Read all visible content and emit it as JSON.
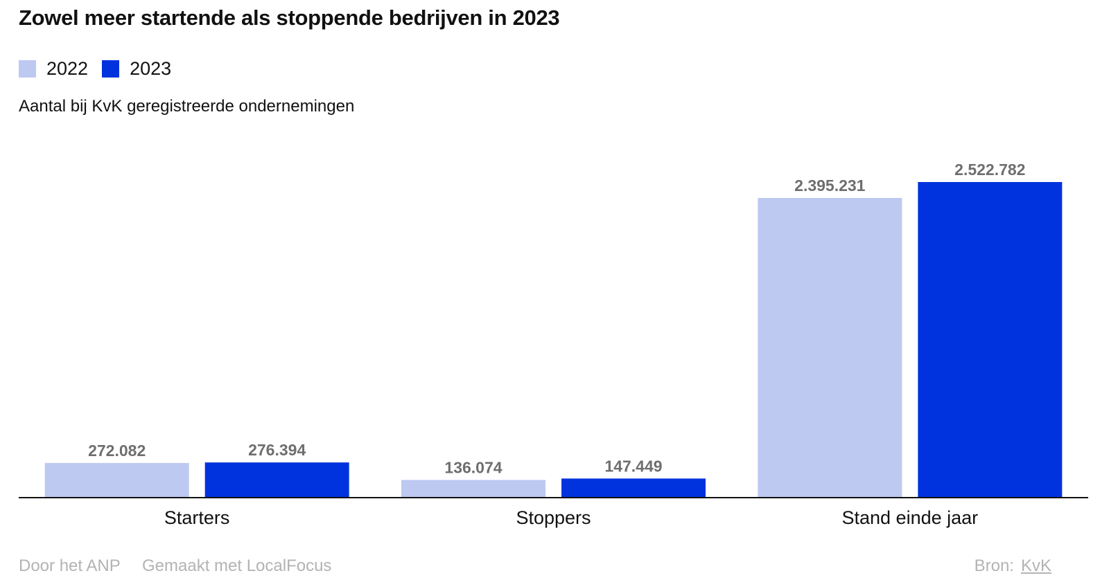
{
  "title": "Zowel meer startende als stoppende bedrijven in 2023",
  "subtitle": "Aantal bij KvK geregistreerde ondernemingen",
  "colors": {
    "series_2022": "#bdc9f1",
    "series_2023": "#0033dd",
    "axis": "#111111",
    "value_label": "#6e6e6e",
    "footer_text": "#b3b3b3"
  },
  "legend": [
    {
      "label": "2022",
      "color": "#bdc9f1"
    },
    {
      "label": "2023",
      "color": "#0033dd"
    }
  ],
  "chart_data": {
    "type": "bar",
    "categories": [
      "Starters",
      "Stoppers",
      "Stand einde jaar"
    ],
    "series": [
      {
        "name": "2022",
        "values": [
          272082,
          136074,
          2395231
        ],
        "labels": [
          "272.082",
          "136.074",
          "2.395.231"
        ]
      },
      {
        "name": "2023",
        "values": [
          276394,
          147449,
          2522782
        ],
        "labels": [
          "276.394",
          "147.449",
          "2.522.782"
        ]
      }
    ],
    "title": "Zowel meer startende als stoppende bedrijven in 2023",
    "subtitle": "Aantal bij KvK geregistreerde ondernemingen",
    "xlabel": "",
    "ylabel": "",
    "ylim": [
      0,
      2522782
    ],
    "grid": false,
    "legend_position": "top-left"
  },
  "footer": {
    "credit": "Door het ANP",
    "made_with": "Gemaakt met LocalFocus",
    "source_label": "Bron:",
    "source_link": "KvK"
  }
}
